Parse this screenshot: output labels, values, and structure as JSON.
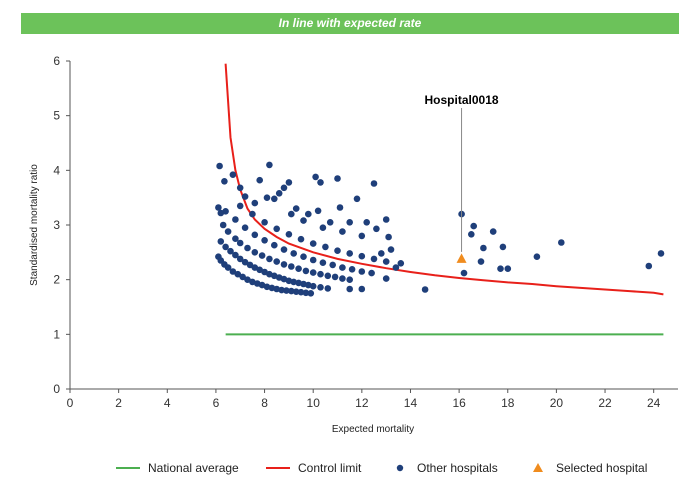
{
  "banner": {
    "text": "In line with expected rate",
    "color": "#6cc25a"
  },
  "chart_data": {
    "type": "scatter",
    "title": "",
    "xlabel": "Expected mortality",
    "ylabel": "Standardised mortality ratio",
    "xlim": [
      0,
      25
    ],
    "ylim": [
      0,
      6
    ],
    "xticks": [
      0,
      2,
      4,
      6,
      8,
      10,
      12,
      14,
      16,
      18,
      20,
      22,
      24
    ],
    "yticks": [
      0,
      1,
      2,
      3,
      4,
      5,
      6
    ],
    "grid": false,
    "legend_position": "bottom",
    "national_average": {
      "name": "National average",
      "color": "#4caf50",
      "y": 1,
      "x_range": [
        6.4,
        24.4
      ]
    },
    "control_limit": {
      "name": "Control limit",
      "color": "#e8201a",
      "points": [
        [
          6.4,
          5.95
        ],
        [
          6.6,
          4.6
        ],
        [
          6.8,
          4.0
        ],
        [
          7.0,
          3.65
        ],
        [
          7.3,
          3.3
        ],
        [
          7.6,
          3.1
        ],
        [
          8,
          2.93
        ],
        [
          8.5,
          2.78
        ],
        [
          9,
          2.66
        ],
        [
          10,
          2.5
        ],
        [
          11,
          2.38
        ],
        [
          12,
          2.29
        ],
        [
          13,
          2.21
        ],
        [
          14,
          2.14
        ],
        [
          15,
          2.08
        ],
        [
          16,
          2.03
        ],
        [
          17,
          1.99
        ],
        [
          18,
          1.95
        ],
        [
          19,
          1.92
        ],
        [
          20,
          1.88
        ],
        [
          21,
          1.85
        ],
        [
          22,
          1.82
        ],
        [
          23,
          1.79
        ],
        [
          24,
          1.76
        ],
        [
          24.4,
          1.73
        ]
      ]
    },
    "other_hospitals": {
      "name": "Other hospitals",
      "color": "#1f3f7a",
      "points": [
        [
          6.1,
          2.42
        ],
        [
          6.2,
          2.35
        ],
        [
          6.35,
          2.28
        ],
        [
          6.5,
          2.22
        ],
        [
          6.7,
          2.15
        ],
        [
          6.9,
          2.1
        ],
        [
          7.1,
          2.05
        ],
        [
          7.3,
          2.0
        ],
        [
          7.5,
          1.96
        ],
        [
          7.7,
          1.93
        ],
        [
          7.9,
          1.9
        ],
        [
          8.1,
          1.87
        ],
        [
          8.3,
          1.85
        ],
        [
          8.5,
          1.83
        ],
        [
          8.7,
          1.81
        ],
        [
          8.9,
          1.8
        ],
        [
          9.1,
          1.79
        ],
        [
          9.3,
          1.78
        ],
        [
          9.5,
          1.77
        ],
        [
          9.7,
          1.76
        ],
        [
          9.9,
          1.75
        ],
        [
          6.2,
          2.7
        ],
        [
          6.4,
          2.6
        ],
        [
          6.6,
          2.52
        ],
        [
          6.8,
          2.45
        ],
        [
          7.0,
          2.38
        ],
        [
          7.2,
          2.32
        ],
        [
          7.4,
          2.27
        ],
        [
          7.6,
          2.22
        ],
        [
          7.8,
          2.18
        ],
        [
          8.0,
          2.14
        ],
        [
          8.2,
          2.1
        ],
        [
          8.4,
          2.07
        ],
        [
          8.6,
          2.04
        ],
        [
          8.8,
          2.01
        ],
        [
          9.0,
          1.98
        ],
        [
          9.2,
          1.96
        ],
        [
          9.4,
          1.94
        ],
        [
          9.6,
          1.92
        ],
        [
          9.8,
          1.9
        ],
        [
          10.0,
          1.88
        ],
        [
          10.3,
          1.86
        ],
        [
          10.6,
          1.84
        ],
        [
          6.3,
          3.0
        ],
        [
          6.5,
          2.88
        ],
        [
          6.8,
          2.75
        ],
        [
          7.0,
          2.67
        ],
        [
          7.3,
          2.58
        ],
        [
          7.6,
          2.5
        ],
        [
          7.9,
          2.44
        ],
        [
          8.2,
          2.38
        ],
        [
          8.5,
          2.33
        ],
        [
          8.8,
          2.28
        ],
        [
          9.1,
          2.24
        ],
        [
          9.4,
          2.2
        ],
        [
          9.7,
          2.16
        ],
        [
          10.0,
          2.13
        ],
        [
          10.3,
          2.1
        ],
        [
          10.6,
          2.07
        ],
        [
          10.9,
          2.05
        ],
        [
          11.2,
          2.02
        ],
        [
          11.5,
          2.0
        ],
        [
          6.4,
          3.25
        ],
        [
          6.8,
          3.1
        ],
        [
          7.2,
          2.95
        ],
        [
          7.6,
          2.82
        ],
        [
          8.0,
          2.72
        ],
        [
          8.4,
          2.63
        ],
        [
          8.8,
          2.55
        ],
        [
          9.2,
          2.48
        ],
        [
          9.6,
          2.42
        ],
        [
          10.0,
          2.36
        ],
        [
          10.4,
          2.31
        ],
        [
          10.8,
          2.27
        ],
        [
          11.2,
          2.22
        ],
        [
          11.6,
          2.19
        ],
        [
          12.0,
          2.15
        ],
        [
          12.4,
          2.12
        ],
        [
          7.0,
          3.35
        ],
        [
          7.5,
          3.2
        ],
        [
          8.0,
          3.05
        ],
        [
          8.5,
          2.93
        ],
        [
          9.0,
          2.83
        ],
        [
          9.5,
          2.74
        ],
        [
          10.0,
          2.66
        ],
        [
          10.5,
          2.6
        ],
        [
          11.0,
          2.53
        ],
        [
          11.5,
          2.48
        ],
        [
          12.0,
          2.43
        ],
        [
          12.5,
          2.38
        ],
        [
          13.0,
          2.33
        ],
        [
          6.1,
          3.32
        ],
        [
          6.2,
          3.22
        ],
        [
          6.35,
          3.8
        ],
        [
          6.15,
          4.08
        ],
        [
          6.7,
          3.92
        ],
        [
          7.0,
          3.68
        ],
        [
          7.2,
          3.52
        ],
        [
          7.6,
          3.4
        ],
        [
          7.8,
          3.82
        ],
        [
          8.1,
          3.5
        ],
        [
          8.2,
          4.1
        ],
        [
          8.4,
          3.48
        ],
        [
          8.6,
          3.58
        ],
        [
          8.8,
          3.68
        ],
        [
          9.0,
          3.78
        ],
        [
          9.1,
          3.2
        ],
        [
          9.3,
          3.3
        ],
        [
          9.6,
          3.08
        ],
        [
          9.8,
          3.2
        ],
        [
          10.1,
          3.88
        ],
        [
          10.3,
          3.78
        ],
        [
          10.2,
          3.26
        ],
        [
          10.4,
          2.95
        ],
        [
          10.7,
          3.05
        ],
        [
          11.0,
          3.85
        ],
        [
          11.1,
          3.32
        ],
        [
          11.2,
          2.88
        ],
        [
          11.5,
          3.05
        ],
        [
          11.8,
          3.48
        ],
        [
          12.0,
          2.8
        ],
        [
          12.2,
          3.05
        ],
        [
          12.5,
          3.76
        ],
        [
          12.6,
          2.93
        ],
        [
          12.8,
          2.48
        ],
        [
          13.0,
          3.1
        ],
        [
          13.1,
          2.78
        ],
        [
          13.2,
          2.55
        ],
        [
          13.4,
          2.22
        ],
        [
          13.6,
          2.3
        ],
        [
          11.5,
          1.83
        ],
        [
          12.0,
          1.83
        ],
        [
          13.0,
          2.02
        ],
        [
          14.6,
          1.82
        ],
        [
          16.1,
          3.2
        ],
        [
          16.2,
          2.12
        ],
        [
          16.5,
          2.83
        ],
        [
          16.6,
          2.98
        ],
        [
          16.9,
          2.33
        ],
        [
          17.0,
          2.58
        ],
        [
          17.4,
          2.88
        ],
        [
          17.7,
          2.2
        ],
        [
          17.8,
          2.6
        ],
        [
          18.0,
          2.2
        ],
        [
          19.2,
          2.42
        ],
        [
          20.2,
          2.68
        ],
        [
          23.8,
          2.25
        ],
        [
          24.3,
          2.48
        ]
      ]
    },
    "selected_hospital": {
      "name": "Selected hospital",
      "color": "#f08c1e",
      "label": "Hospital0018",
      "x": 16.1,
      "y": 2.38
    }
  }
}
